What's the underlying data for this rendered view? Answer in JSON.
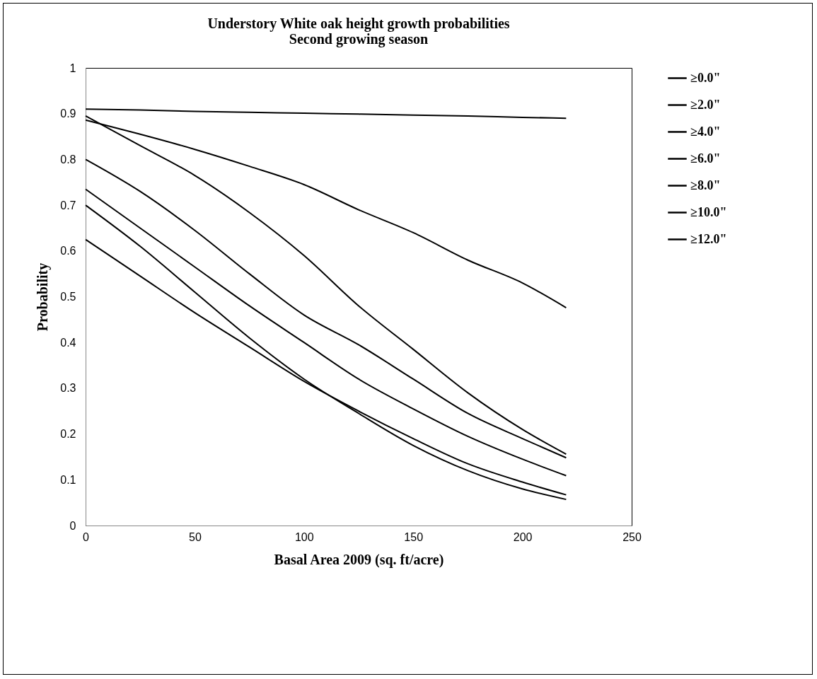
{
  "chart_data": {
    "type": "line",
    "title": "Understory White oak height growth probabilities",
    "subtitle": "Second growing season",
    "xlabel": "Basal Area 2009 (sq. ft/acre)",
    "ylabel": "Probability",
    "x": [
      0,
      25,
      50,
      75,
      100,
      125,
      150,
      175,
      200,
      220
    ],
    "xlim": [
      0,
      250
    ],
    "xticks": [
      0,
      50,
      100,
      150,
      200,
      250
    ],
    "ylim": [
      0,
      1
    ],
    "yticks": [
      0,
      0.1,
      0.2,
      0.3,
      0.4,
      0.5,
      0.6,
      0.7,
      0.8,
      0.9,
      1
    ],
    "grid": false,
    "legend": "right",
    "marker": "none",
    "line_style": "solid",
    "series": [
      {
        "name": "≥0.0\"",
        "color": "#000000",
        "values": [
          0.91,
          0.908,
          0.905,
          0.903,
          0.901,
          0.899,
          0.897,
          0.895,
          0.892,
          0.89
        ]
      },
      {
        "name": "≥2.0\"",
        "color": "#000000",
        "values": [
          0.886,
          0.855,
          0.822,
          0.785,
          0.745,
          0.69,
          0.64,
          0.58,
          0.53,
          0.476
        ]
      },
      {
        "name": "≥4.0\"",
        "color": "#000000",
        "values": [
          0.895,
          0.83,
          0.765,
          0.684,
          0.59,
          0.48,
          0.385,
          0.29,
          0.21,
          0.156
        ]
      },
      {
        "name": "≥6.0\"",
        "color": "#000000",
        "values": [
          0.8,
          0.73,
          0.645,
          0.55,
          0.46,
          0.395,
          0.32,
          0.245,
          0.19,
          0.148
        ]
      },
      {
        "name": "≥8.0\"",
        "color": "#000000",
        "values": [
          0.735,
          0.65,
          0.565,
          0.48,
          0.4,
          0.32,
          0.255,
          0.195,
          0.145,
          0.109
        ]
      },
      {
        "name": "≥10.0\"",
        "color": "#000000",
        "values": [
          0.7,
          0.61,
          0.51,
          0.41,
          0.32,
          0.245,
          0.175,
          0.12,
          0.08,
          0.057
        ]
      },
      {
        "name": "≥12.0\"",
        "color": "#000000",
        "values": [
          0.625,
          0.545,
          0.465,
          0.39,
          0.315,
          0.25,
          0.19,
          0.135,
          0.095,
          0.067
        ]
      }
    ]
  }
}
